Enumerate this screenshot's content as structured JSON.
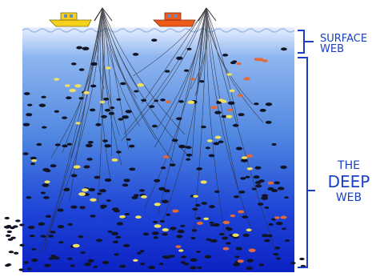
{
  "labels": {
    "surface_line1": "SURFACE",
    "surface_line2": "WEB",
    "deep_line1": "THE",
    "deep_line2": "DEEP",
    "deep_line3": "WEB"
  },
  "colors": {
    "ocean_top": "#e9f0ff",
    "ocean_mid": "#4f86e0",
    "ocean_deep": "#0d22c4",
    "bracket": "#1a3fc4",
    "boat_left": "#f6d21c",
    "boat_right": "#f05a18",
    "fish_dark": "#101424",
    "fish_yellow": "#f0e060",
    "fish_orange": "#e06a3a"
  },
  "icons": {
    "left_boat": "fishing-boat-icon",
    "right_boat": "fishing-boat-icon",
    "surface_bracket": "bracket-icon",
    "deep_bracket": "bracket-icon"
  }
}
